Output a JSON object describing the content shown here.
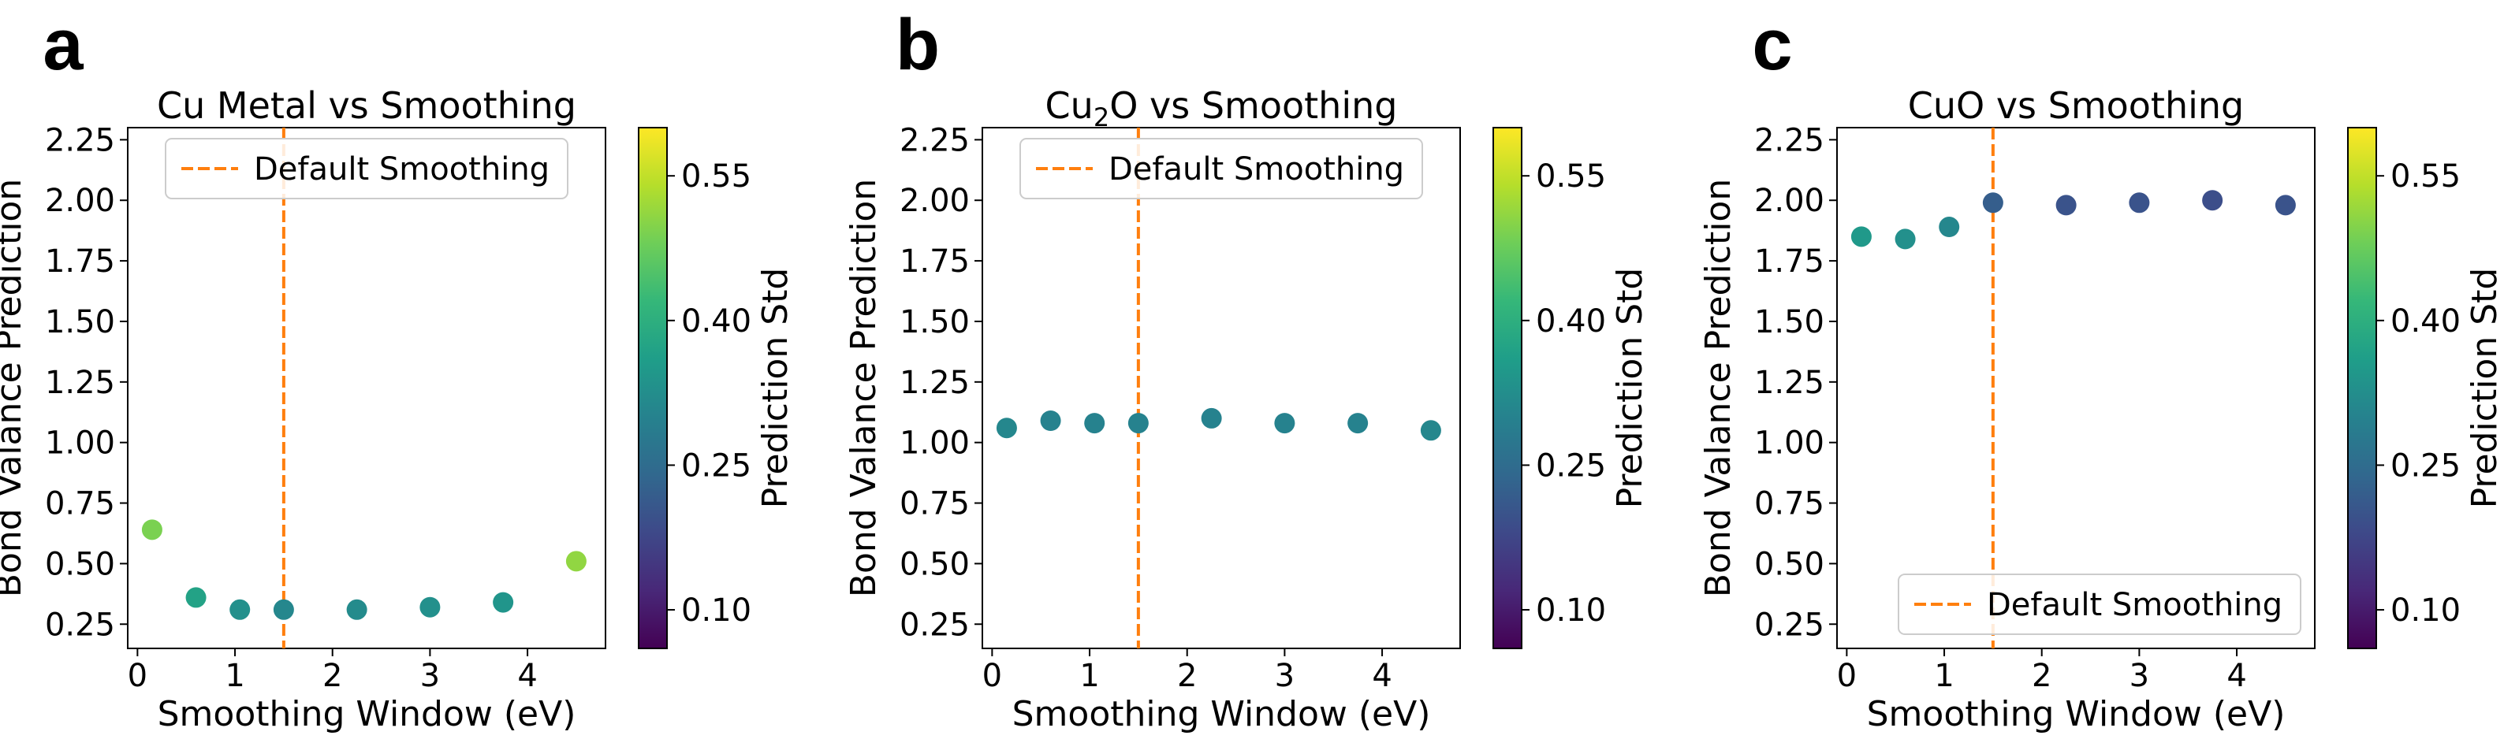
{
  "chart_data": [
    {
      "panel": "a",
      "type": "scatter",
      "title": "Cu Metal vs Smoothing",
      "xlabel": "Smoothing Window (eV)",
      "ylabel": "Bond Valance Prediction",
      "xlim": [
        -0.1,
        4.8
      ],
      "ylim": [
        0.15,
        2.3
      ],
      "xticks": [
        0,
        1,
        2,
        3,
        4
      ],
      "yticks": [
        "0.25",
        "0.50",
        "0.75",
        "1.00",
        "1.25",
        "1.50",
        "1.75",
        "2.00",
        "2.25"
      ],
      "points": [
        {
          "x": 0.15,
          "y": 0.64,
          "std": 0.49
        },
        {
          "x": 0.6,
          "y": 0.36,
          "std": 0.37
        },
        {
          "x": 1.05,
          "y": 0.31,
          "std": 0.33
        },
        {
          "x": 1.5,
          "y": 0.31,
          "std": 0.31
        },
        {
          "x": 2.25,
          "y": 0.31,
          "std": 0.32
        },
        {
          "x": 3.0,
          "y": 0.32,
          "std": 0.33
        },
        {
          "x": 3.75,
          "y": 0.34,
          "std": 0.34
        },
        {
          "x": 4.5,
          "y": 0.51,
          "std": 0.51
        }
      ],
      "default_line_x": 1.5,
      "legend": {
        "label": "Default Smoothing",
        "loc": "upper center"
      },
      "colorbar": {
        "label": "Prediction Std",
        "min": 0.06,
        "max": 0.6,
        "ticks": [
          "0.10",
          "0.25",
          "0.40",
          "0.55"
        ]
      }
    },
    {
      "panel": "b",
      "type": "scatter",
      "title": "Cu₂O vs Smoothing",
      "xlabel": "Smoothing Window (eV)",
      "ylabel": "Bond Valance Prediction",
      "xlim": [
        -0.1,
        4.8
      ],
      "ylim": [
        0.15,
        2.3
      ],
      "xticks": [
        0,
        1,
        2,
        3,
        4
      ],
      "yticks": [
        "0.25",
        "0.50",
        "0.75",
        "1.00",
        "1.25",
        "1.50",
        "1.75",
        "2.00",
        "2.25"
      ],
      "points": [
        {
          "x": 0.15,
          "y": 1.06,
          "std": 0.31
        },
        {
          "x": 0.6,
          "y": 1.09,
          "std": 0.3
        },
        {
          "x": 1.05,
          "y": 1.08,
          "std": 0.3
        },
        {
          "x": 1.5,
          "y": 1.08,
          "std": 0.3
        },
        {
          "x": 2.25,
          "y": 1.1,
          "std": 0.3
        },
        {
          "x": 3.0,
          "y": 1.08,
          "std": 0.3
        },
        {
          "x": 3.75,
          "y": 1.08,
          "std": 0.3
        },
        {
          "x": 4.5,
          "y": 1.05,
          "std": 0.31
        }
      ],
      "default_line_x": 1.5,
      "legend": {
        "label": "Default Smoothing",
        "loc": "upper center"
      },
      "colorbar": {
        "label": "Prediction Std",
        "min": 0.06,
        "max": 0.6,
        "ticks": [
          "0.10",
          "0.25",
          "0.40",
          "0.55"
        ]
      }
    },
    {
      "panel": "c",
      "type": "scatter",
      "title": "CuO vs Smoothing",
      "xlabel": "Smoothing Window (eV)",
      "ylabel": "Bond Valance Prediction",
      "xlim": [
        -0.1,
        4.8
      ],
      "ylim": [
        0.15,
        2.3
      ],
      "xticks": [
        0,
        1,
        2,
        3,
        4
      ],
      "yticks": [
        "0.25",
        "0.50",
        "0.75",
        "1.00",
        "1.25",
        "1.50",
        "1.75",
        "2.00",
        "2.25"
      ],
      "points": [
        {
          "x": 0.15,
          "y": 1.85,
          "std": 0.35
        },
        {
          "x": 0.6,
          "y": 1.84,
          "std": 0.33
        },
        {
          "x": 1.05,
          "y": 1.89,
          "std": 0.31
        },
        {
          "x": 1.5,
          "y": 1.99,
          "std": 0.22
        },
        {
          "x": 2.25,
          "y": 1.98,
          "std": 0.2
        },
        {
          "x": 3.0,
          "y": 1.99,
          "std": 0.2
        },
        {
          "x": 3.75,
          "y": 2.0,
          "std": 0.19
        },
        {
          "x": 4.5,
          "y": 1.98,
          "std": 0.2
        }
      ],
      "default_line_x": 1.5,
      "legend": {
        "label": "Default Smoothing",
        "loc": "lower right"
      },
      "colorbar": {
        "label": "Prediction Std",
        "min": 0.06,
        "max": 0.6,
        "ticks": [
          "0.10",
          "0.25",
          "0.40",
          "0.55"
        ]
      }
    }
  ],
  "colors": {
    "default_line": "#ff7f0e",
    "axis": "#000000",
    "colormap": "viridis"
  }
}
